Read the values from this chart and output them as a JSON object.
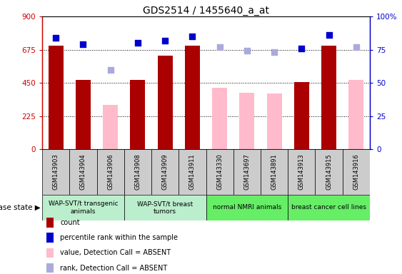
{
  "title": "GDS2514 / 1455640_a_at",
  "samples": [
    "GSM143903",
    "GSM143904",
    "GSM143906",
    "GSM143908",
    "GSM143909",
    "GSM143911",
    "GSM143330",
    "GSM143697",
    "GSM143891",
    "GSM143913",
    "GSM143915",
    "GSM143916"
  ],
  "count_values": [
    700,
    470,
    null,
    470,
    635,
    700,
    null,
    null,
    null,
    455,
    700,
    null
  ],
  "absent_values": [
    null,
    null,
    300,
    null,
    null,
    null,
    415,
    385,
    380,
    null,
    null,
    470
  ],
  "rank_values": [
    84,
    79,
    null,
    80,
    82,
    85,
    null,
    null,
    null,
    76,
    86,
    null
  ],
  "absent_rank": [
    null,
    null,
    60,
    null,
    null,
    null,
    77,
    74,
    73,
    null,
    null,
    77
  ],
  "groups": [
    {
      "label": "WAP-SVT/t transgenic\nanimals",
      "start": 0,
      "end": 3,
      "color": "#bbeecc"
    },
    {
      "label": "WAP-SVT/t breast\ntumors",
      "start": 3,
      "end": 6,
      "color": "#bbeecc"
    },
    {
      "label": "normal NMRI animals",
      "start": 6,
      "end": 9,
      "color": "#66ee66"
    },
    {
      "label": "breast cancer cell lines",
      "start": 9,
      "end": 12,
      "color": "#66ee66"
    }
  ],
  "ylim_left": [
    0,
    900
  ],
  "ylim_right": [
    0,
    100
  ],
  "yticks_left": [
    0,
    225,
    450,
    675,
    900
  ],
  "yticks_right": [
    0,
    25,
    50,
    75,
    100
  ],
  "bar_color_present": "#aa0000",
  "bar_color_absent": "#ffbbcc",
  "dot_color_present": "#0000cc",
  "dot_color_absent": "#aaaadd",
  "bar_width": 0.55,
  "disease_state_label": "disease state",
  "legend_items": [
    {
      "color": "#aa0000",
      "label": "count"
    },
    {
      "color": "#0000cc",
      "label": "percentile rank within the sample"
    },
    {
      "color": "#ffbbcc",
      "label": "value, Detection Call = ABSENT"
    },
    {
      "color": "#aaaadd",
      "label": "rank, Detection Call = ABSENT"
    }
  ]
}
